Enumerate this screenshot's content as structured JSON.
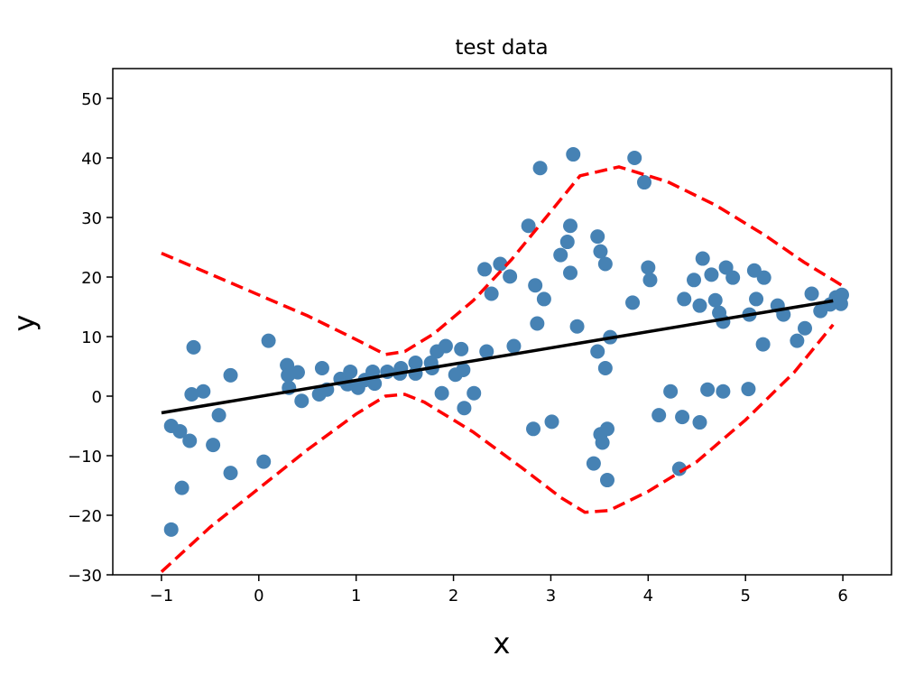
{
  "chart_data": {
    "type": "scatter",
    "title": "test data",
    "xlabel": "x",
    "ylabel": "y",
    "xlim": [
      -1.5,
      6.5
    ],
    "ylim": [
      -30,
      55
    ],
    "xticks": [
      -1,
      0,
      1,
      2,
      3,
      4,
      5,
      6
    ],
    "yticks": [
      -30,
      -20,
      -10,
      0,
      10,
      20,
      30,
      40,
      50
    ],
    "xtick_labels": [
      "−1",
      "0",
      "1",
      "2",
      "3",
      "4",
      "5",
      "6"
    ],
    "ytick_labels": [
      "−30",
      "−20",
      "−10",
      "0",
      "10",
      "20",
      "30",
      "40",
      "50"
    ],
    "grid": false,
    "colors": {
      "points": "#4682b4",
      "fit": "#000000",
      "bounds": "#ff0000"
    },
    "points": [
      [
        -0.9,
        -5.0
      ],
      [
        -0.81,
        -5.9
      ],
      [
        -0.71,
        -7.5
      ],
      [
        -0.79,
        -15.4
      ],
      [
        -0.9,
        -22.4
      ],
      [
        -0.67,
        8.2
      ],
      [
        -0.69,
        0.3
      ],
      [
        -0.57,
        0.8
      ],
      [
        -0.41,
        -3.2
      ],
      [
        -0.47,
        -8.2
      ],
      [
        -0.29,
        3.5
      ],
      [
        -0.29,
        -12.9
      ],
      [
        0.05,
        -11.0
      ],
      [
        0.1,
        9.3
      ],
      [
        0.29,
        5.2
      ],
      [
        0.3,
        3.5
      ],
      [
        0.31,
        1.4
      ],
      [
        0.4,
        4.0
      ],
      [
        0.44,
        -0.8
      ],
      [
        0.65,
        4.7
      ],
      [
        0.62,
        0.3
      ],
      [
        0.7,
        1.1
      ],
      [
        0.84,
        2.9
      ],
      [
        0.94,
        4.1
      ],
      [
        0.91,
        2.0
      ],
      [
        1.02,
        1.4
      ],
      [
        1.09,
        2.7
      ],
      [
        1.17,
        4.1
      ],
      [
        1.19,
        2.1
      ],
      [
        1.32,
        4.1
      ],
      [
        1.45,
        3.8
      ],
      [
        1.46,
        4.7
      ],
      [
        1.61,
        5.6
      ],
      [
        1.61,
        3.8
      ],
      [
        1.77,
        5.6
      ],
      [
        1.78,
        4.7
      ],
      [
        1.83,
        7.5
      ],
      [
        1.92,
        8.4
      ],
      [
        1.88,
        0.5
      ],
      [
        2.08,
        7.9
      ],
      [
        2.02,
        3.6
      ],
      [
        2.1,
        4.4
      ],
      [
        2.21,
        0.5
      ],
      [
        2.11,
        -2.0
      ],
      [
        2.34,
        7.5
      ],
      [
        2.89,
        38.3
      ],
      [
        3.23,
        40.6
      ],
      [
        3.86,
        40.0
      ],
      [
        3.96,
        35.9
      ],
      [
        2.77,
        28.6
      ],
      [
        3.2,
        28.6
      ],
      [
        3.17,
        25.9
      ],
      [
        3.1,
        23.7
      ],
      [
        3.48,
        26.8
      ],
      [
        3.51,
        24.3
      ],
      [
        3.56,
        22.2
      ],
      [
        3.2,
        20.7
      ],
      [
        2.32,
        21.3
      ],
      [
        2.48,
        22.2
      ],
      [
        2.58,
        20.1
      ],
      [
        2.39,
        17.2
      ],
      [
        2.84,
        18.6
      ],
      [
        2.93,
        16.3
      ],
      [
        2.86,
        12.2
      ],
      [
        3.27,
        11.7
      ],
      [
        3.84,
        15.7
      ],
      [
        4.0,
        21.6
      ],
      [
        4.02,
        19.5
      ],
      [
        4.56,
        23.1
      ],
      [
        4.47,
        19.5
      ],
      [
        4.65,
        20.4
      ],
      [
        4.8,
        21.6
      ],
      [
        4.87,
        19.9
      ],
      [
        5.09,
        21.1
      ],
      [
        5.19,
        19.9
      ],
      [
        4.37,
        16.3
      ],
      [
        4.53,
        15.2
      ],
      [
        4.69,
        16.1
      ],
      [
        4.73,
        14.0
      ],
      [
        4.77,
        12.5
      ],
      [
        5.11,
        16.3
      ],
      [
        5.04,
        13.7
      ],
      [
        5.33,
        15.2
      ],
      [
        5.39,
        13.7
      ],
      [
        5.18,
        8.7
      ],
      [
        5.61,
        11.4
      ],
      [
        5.53,
        9.3
      ],
      [
        5.68,
        17.2
      ],
      [
        5.77,
        14.3
      ],
      [
        5.93,
        16.6
      ],
      [
        5.99,
        17.0
      ],
      [
        5.98,
        15.5
      ],
      [
        5.87,
        15.4
      ],
      [
        3.61,
        9.9
      ],
      [
        3.48,
        7.5
      ],
      [
        3.56,
        4.7
      ],
      [
        2.62,
        8.4
      ],
      [
        2.82,
        -5.5
      ],
      [
        3.01,
        -4.3
      ],
      [
        4.23,
        0.8
      ],
      [
        4.61,
        1.1
      ],
      [
        4.77,
        0.8
      ],
      [
        5.03,
        1.2
      ],
      [
        4.11,
        -3.2
      ],
      [
        4.35,
        -3.5
      ],
      [
        4.53,
        -4.4
      ],
      [
        3.58,
        -5.5
      ],
      [
        3.51,
        -6.4
      ],
      [
        3.53,
        -7.8
      ],
      [
        3.44,
        -11.3
      ],
      [
        3.58,
        -14.1
      ],
      [
        4.32,
        -12.2
      ]
    ],
    "fit_line": [
      [
        -1.0,
        -2.8
      ],
      [
        5.9,
        16.0
      ]
    ],
    "upper_bound": [
      [
        -1,
        24
      ],
      [
        -0.5,
        20.5
      ],
      [
        0,
        17
      ],
      [
        0.5,
        13.5
      ],
      [
        1.0,
        9.5
      ],
      [
        1.3,
        7
      ],
      [
        1.5,
        7.5
      ],
      [
        1.8,
        10.5
      ],
      [
        2.2,
        16
      ],
      [
        2.6,
        23
      ],
      [
        3.0,
        31
      ],
      [
        3.3,
        37
      ],
      [
        3.7,
        38.5
      ],
      [
        4.2,
        36
      ],
      [
        4.7,
        32
      ],
      [
        5.2,
        27
      ],
      [
        5.6,
        22.5
      ],
      [
        5.9,
        19.5
      ],
      [
        6,
        18.5
      ]
    ],
    "lower_bound": [
      [
        -1,
        -29.5
      ],
      [
        -0.5,
        -22
      ],
      [
        0,
        -15.5
      ],
      [
        0.5,
        -9
      ],
      [
        1.0,
        -3
      ],
      [
        1.3,
        0
      ],
      [
        1.5,
        0.3
      ],
      [
        1.7,
        -1
      ],
      [
        2.2,
        -6
      ],
      [
        2.7,
        -12
      ],
      [
        3.1,
        -17
      ],
      [
        3.35,
        -19.5
      ],
      [
        3.6,
        -19.2
      ],
      [
        4.0,
        -16
      ],
      [
        4.5,
        -11
      ],
      [
        5.0,
        -4
      ],
      [
        5.5,
        4
      ],
      [
        5.9,
        12
      ]
    ]
  }
}
